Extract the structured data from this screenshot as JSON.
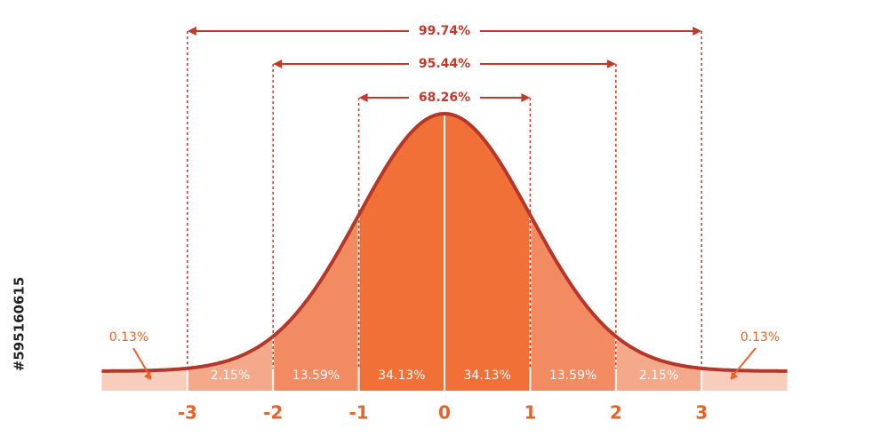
{
  "x_labels": [
    "-3",
    "-2",
    "-1",
    "0",
    "1",
    "2",
    "3"
  ],
  "segments": [
    "0.13%",
    "2.15%",
    "13.59%",
    "34.13%",
    "34.13%",
    "13.59%",
    "2.15%",
    "0.13%"
  ],
  "ranges": [
    "68.26%",
    "95.44%",
    "99.74%"
  ],
  "side_id": "#595160615"
}
